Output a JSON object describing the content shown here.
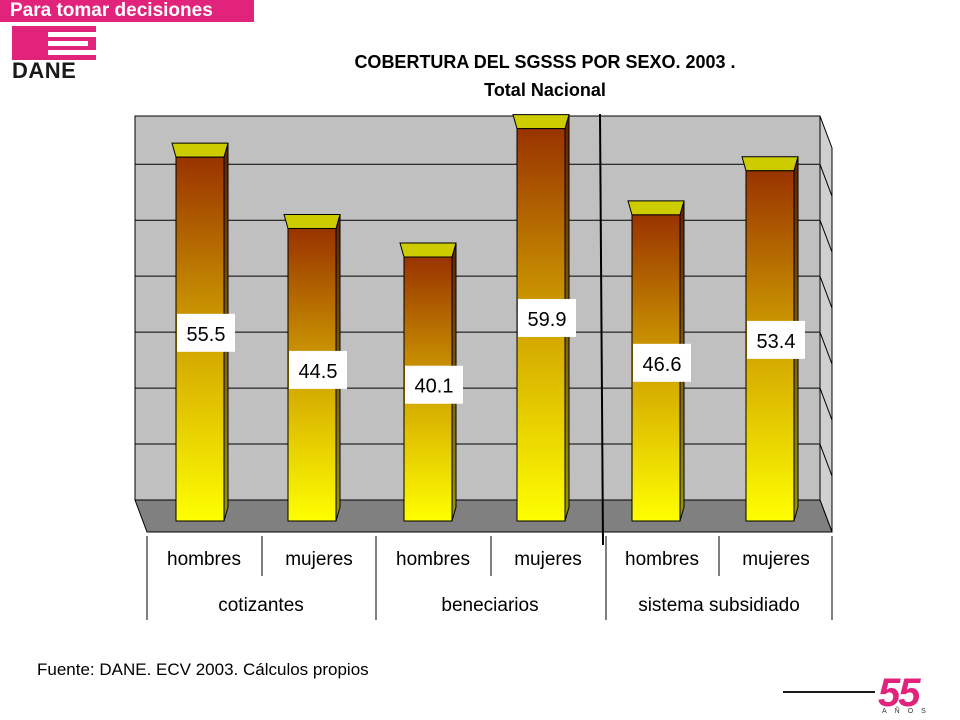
{
  "header": {
    "tagline": "Para tomar decisiones",
    "logo_text": "DANE"
  },
  "chart_data": {
    "type": "bar",
    "title": "COBERTURA DEL SGSSS POR SEXO. 2003 .",
    "subtitle": "Total Nacional",
    "groups": [
      {
        "label": "cotizantes",
        "categories": [
          "hombres",
          "mujeres"
        ],
        "values": [
          55.5,
          44.5
        ]
      },
      {
        "label": "beneciarios",
        "categories": [
          "hombres",
          "mujeres"
        ],
        "values": [
          40.1,
          59.9
        ]
      },
      {
        "label": "sistema subsidiado",
        "categories": [
          "hombres",
          "mujeres"
        ],
        "values": [
          46.6,
          53.4
        ]
      }
    ],
    "categories": [
      "hombres",
      "mujeres",
      "hombres",
      "mujeres",
      "hombres",
      "mujeres"
    ],
    "values": [
      55.5,
      44.5,
      40.1,
      59.9,
      46.6,
      53.4
    ],
    "ylim": [
      0,
      70
    ],
    "gridlines": [
      10,
      20,
      30,
      40,
      50,
      60
    ],
    "grid": true,
    "style": "3d",
    "colors": {
      "bar_top": "#993300",
      "bar_bottom": "#ffff00",
      "wall": "#c0c0c0",
      "floor": "#808080",
      "cap": "#cccc00"
    }
  },
  "footer": {
    "source": "Fuente: DANE. ECV  2003. Cálculos propios",
    "badge_number": "55",
    "badge_sub": "AÑOS"
  }
}
